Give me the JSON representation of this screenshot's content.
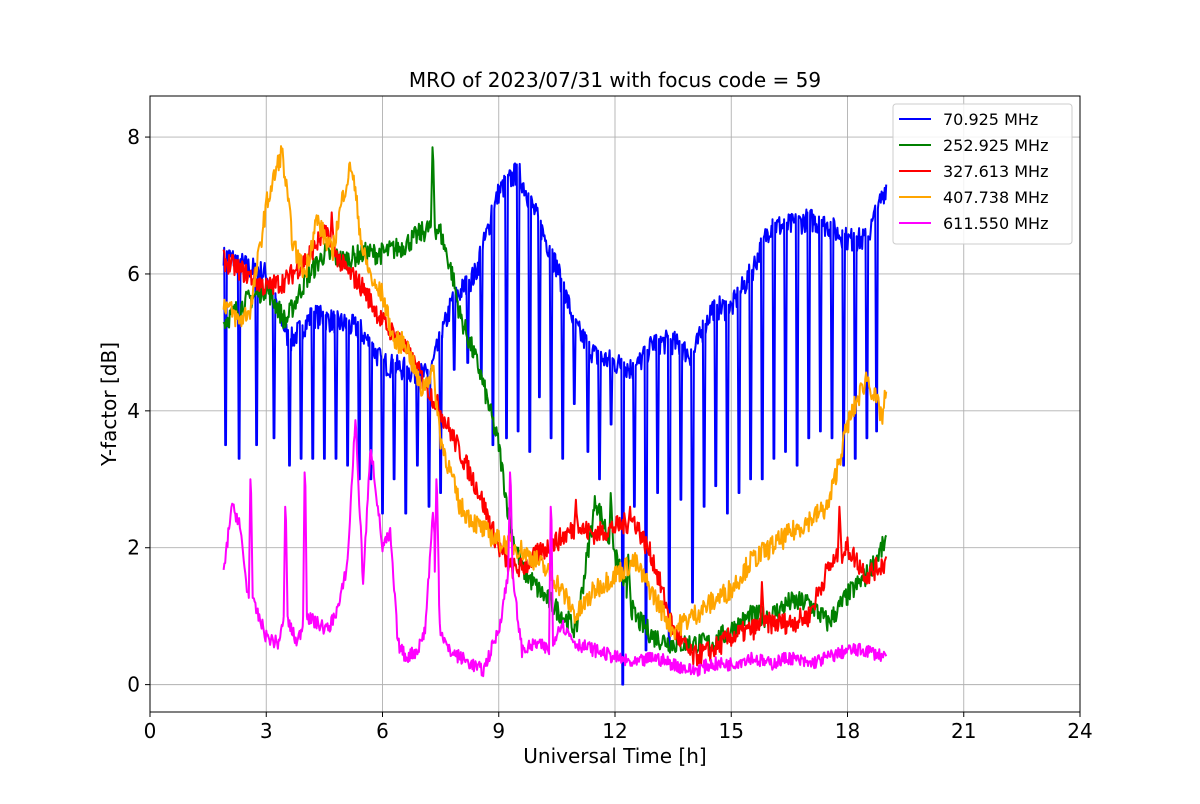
{
  "chart_data": {
    "type": "line",
    "title": "MRO of 2023/07/31 with focus code = 59",
    "xlabel": "Universal Time [h]",
    "ylabel": "Y-factor [dB]",
    "xlim": [
      0,
      24
    ],
    "ylim": [
      -0.4,
      8.6
    ],
    "xticks": [
      0,
      3,
      6,
      9,
      12,
      15,
      18,
      21,
      24
    ],
    "yticks": [
      0,
      2,
      4,
      6,
      8
    ],
    "grid": true,
    "legend_position": "top-right",
    "series": [
      {
        "name": " 70.925 MHz",
        "color": "#0000ff",
        "x": [
          1.9,
          2.5,
          3.0,
          3.6,
          4.2,
          4.8,
          5.4,
          6.0,
          6.6,
          7.2,
          7.8,
          8.4,
          9.0,
          9.5,
          10.0,
          10.5,
          11.0,
          11.5,
          12.0,
          12.5,
          13.0,
          13.5,
          14.0,
          14.5,
          15.0,
          15.5,
          16.0,
          16.5,
          17.0,
          17.5,
          18.0,
          18.5,
          19.0
        ],
        "y": [
          6.3,
          6.1,
          6.0,
          5.0,
          5.4,
          5.3,
          5.2,
          4.7,
          4.6,
          4.5,
          5.6,
          6.0,
          7.2,
          7.5,
          6.8,
          6.1,
          5.2,
          4.8,
          4.7,
          4.6,
          5.0,
          5.0,
          4.8,
          5.5,
          5.5,
          6.0,
          6.7,
          6.7,
          6.8,
          6.7,
          6.5,
          6.5,
          7.3
        ],
        "dips": [
          [
            1.95,
            3.5
          ],
          [
            2.3,
            3.3
          ],
          [
            2.75,
            3.5
          ],
          [
            3.2,
            3.6
          ],
          [
            3.6,
            3.2
          ],
          [
            3.9,
            3.3
          ],
          [
            4.2,
            3.3
          ],
          [
            4.5,
            3.3
          ],
          [
            4.8,
            3.3
          ],
          [
            5.1,
            3.2
          ],
          [
            5.4,
            3.0
          ],
          [
            5.7,
            3.0
          ],
          [
            6.0,
            2.5
          ],
          [
            6.3,
            3.0
          ],
          [
            6.6,
            2.5
          ],
          [
            6.9,
            3.2
          ],
          [
            7.2,
            2.6
          ],
          [
            7.5,
            2.8
          ],
          [
            7.85,
            4.6
          ],
          [
            8.2,
            4.7
          ],
          [
            8.55,
            4.5
          ],
          [
            8.85,
            3.5
          ],
          [
            9.2,
            3.6
          ],
          [
            9.5,
            3.7
          ],
          [
            9.8,
            3.4
          ],
          [
            10.05,
            4.2
          ],
          [
            10.35,
            3.6
          ],
          [
            10.65,
            3.3
          ],
          [
            10.95,
            4.1
          ],
          [
            11.3,
            3.4
          ],
          [
            11.6,
            3.0
          ],
          [
            11.9,
            3.8
          ],
          [
            12.2,
            0.0
          ],
          [
            12.5,
            2.6
          ],
          [
            12.8,
            0.5
          ],
          [
            13.1,
            2.8
          ],
          [
            13.4,
            0.5
          ],
          [
            13.7,
            2.7
          ],
          [
            14.0,
            1.2
          ],
          [
            14.3,
            2.6
          ],
          [
            14.6,
            2.9
          ],
          [
            14.9,
            2.5
          ],
          [
            15.2,
            2.8
          ],
          [
            15.5,
            3.0
          ],
          [
            15.8,
            3.0
          ],
          [
            16.1,
            3.3
          ],
          [
            16.4,
            3.4
          ],
          [
            16.7,
            3.2
          ],
          [
            17.0,
            3.6
          ],
          [
            17.3,
            3.7
          ],
          [
            17.6,
            3.6
          ],
          [
            17.9,
            3.2
          ],
          [
            18.2,
            3.3
          ],
          [
            18.5,
            3.6
          ],
          [
            18.75,
            3.7
          ]
        ]
      },
      {
        "name": "252.925 MHz",
        "color": "#008000",
        "x": [
          1.9,
          2.5,
          3.0,
          3.5,
          4.0,
          4.5,
          5.0,
          5.5,
          6.0,
          6.5,
          7.0,
          7.3,
          7.5,
          7.8,
          8.0,
          8.5,
          9.0,
          9.3,
          9.6,
          10.0,
          10.5,
          11.0,
          11.5,
          12.0,
          12.5,
          13.0,
          13.5,
          14.0,
          14.5,
          15.0,
          15.5,
          16.0,
          16.5,
          17.0,
          17.5,
          18.0,
          18.5,
          19.0
        ],
        "y": [
          5.3,
          5.6,
          5.8,
          5.3,
          5.9,
          6.3,
          6.2,
          6.3,
          6.3,
          6.4,
          6.6,
          6.7,
          6.6,
          6.0,
          5.4,
          4.6,
          3.5,
          2.3,
          1.7,
          1.4,
          1.1,
          0.8,
          2.7,
          1.9,
          1.0,
          0.7,
          0.6,
          0.6,
          0.6,
          0.8,
          1.0,
          1.0,
          1.2,
          1.2,
          0.9,
          1.3,
          1.6,
          2.1
        ],
        "spikes": [
          [
            7.3,
            7.85
          ],
          [
            11.9,
            2.8
          ],
          [
            12.35,
            1.9
          ]
        ]
      },
      {
        "name": "327.613 MHz",
        "color": "#ff0000",
        "x": [
          1.9,
          2.5,
          3.0,
          3.5,
          4.0,
          4.5,
          5.0,
          5.5,
          6.0,
          6.5,
          7.0,
          7.5,
          8.0,
          8.5,
          9.0,
          9.3,
          9.6,
          10.0,
          10.5,
          11.0,
          11.5,
          12.0,
          12.5,
          13.0,
          13.5,
          14.0,
          14.5,
          15.0,
          15.5,
          16.0,
          16.5,
          17.0,
          17.5,
          18.0,
          18.5,
          19.0
        ],
        "y": [
          6.2,
          6.0,
          5.8,
          5.9,
          6.2,
          6.6,
          6.1,
          5.8,
          5.3,
          5.0,
          4.5,
          4.0,
          3.4,
          2.8,
          2.0,
          1.7,
          1.7,
          1.9,
          2.1,
          2.3,
          2.2,
          2.3,
          2.4,
          1.8,
          0.8,
          0.4,
          0.5,
          0.7,
          0.8,
          0.9,
          0.9,
          1.0,
          1.7,
          2.0,
          1.6,
          1.8
        ],
        "spikes": [
          [
            4.7,
            6.9
          ],
          [
            11.0,
            2.7
          ],
          [
            12.4,
            2.6
          ],
          [
            15.8,
            1.5
          ],
          [
            17.8,
            2.6
          ]
        ]
      },
      {
        "name": "407.738 MHz",
        "color": "#ffa500",
        "x": [
          1.9,
          2.3,
          2.6,
          3.0,
          3.4,
          3.7,
          4.0,
          4.3,
          4.7,
          5.0,
          5.2,
          5.5,
          5.8,
          6.0,
          6.3,
          6.6,
          7.0,
          7.3,
          7.5,
          8.0,
          8.5,
          9.0,
          9.5,
          10.0,
          10.5,
          11.0,
          11.5,
          12.0,
          12.5,
          13.0,
          13.5,
          14.0,
          14.5,
          15.0,
          15.5,
          16.0,
          16.5,
          17.0,
          17.5,
          18.0,
          18.5,
          18.9,
          19.0
        ],
        "y": [
          5.6,
          5.3,
          5.5,
          7.0,
          7.8,
          6.4,
          6.0,
          6.8,
          6.3,
          7.2,
          7.6,
          6.3,
          5.8,
          5.7,
          5.0,
          5.0,
          4.3,
          4.6,
          3.6,
          2.6,
          2.3,
          2.1,
          2.0,
          1.8,
          1.5,
          1.0,
          1.4,
          1.6,
          1.8,
          1.3,
          0.8,
          1.0,
          1.2,
          1.4,
          1.8,
          2.0,
          2.2,
          2.4,
          2.6,
          3.8,
          4.5,
          3.9,
          4.3
        ]
      },
      {
        "name": "611.550 MHz",
        "color": "#ff00ff",
        "x": [
          1.9,
          2.1,
          2.3,
          2.5,
          2.8,
          3.0,
          3.3,
          3.5,
          3.8,
          4.0,
          4.3,
          4.6,
          4.9,
          5.1,
          5.3,
          5.5,
          5.7,
          6.0,
          6.2,
          6.4,
          6.6,
          6.9,
          7.1,
          7.3,
          7.5,
          7.7,
          8.0,
          8.3,
          8.6,
          9.0,
          9.3,
          9.6,
          10.0,
          10.3,
          10.6,
          11.0,
          11.5,
          12.0,
          12.5,
          13.0,
          13.5,
          14.0,
          14.5,
          15.0,
          15.5,
          16.0,
          16.5,
          17.0,
          17.5,
          18.0,
          18.5,
          19.0
        ],
        "y": [
          1.6,
          2.6,
          2.4,
          1.4,
          1.0,
          0.7,
          0.6,
          1.0,
          0.6,
          1.0,
          0.9,
          0.8,
          1.2,
          1.8,
          3.9,
          1.5,
          3.5,
          2.0,
          2.2,
          0.6,
          0.4,
          0.5,
          0.8,
          2.5,
          0.8,
          0.5,
          0.4,
          0.3,
          0.2,
          0.8,
          1.8,
          0.5,
          0.6,
          0.5,
          0.9,
          0.6,
          0.5,
          0.4,
          0.3,
          0.4,
          0.3,
          0.2,
          0.3,
          0.3,
          0.4,
          0.3,
          0.4,
          0.3,
          0.4,
          0.5,
          0.5,
          0.4
        ],
        "spikes": [
          [
            2.6,
            3.0
          ],
          [
            3.5,
            2.6
          ],
          [
            4.0,
            3.1
          ],
          [
            7.4,
            3.0
          ],
          [
            9.3,
            3.1
          ],
          [
            10.35,
            2.6
          ]
        ]
      }
    ]
  }
}
